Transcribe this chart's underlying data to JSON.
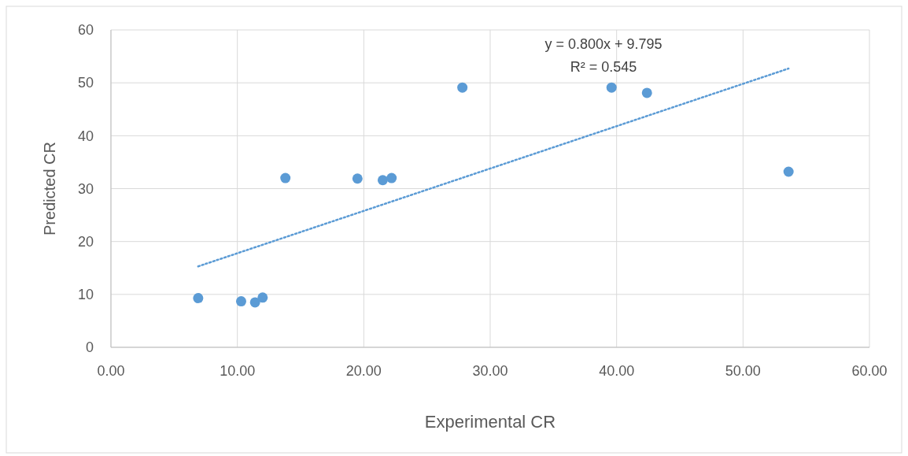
{
  "chart_data": {
    "type": "scatter",
    "xlabel": "Experimental CR",
    "ylabel": "Predicted CR",
    "xlim": [
      0,
      60
    ],
    "ylim": [
      0,
      60
    ],
    "xticks": [
      {
        "value": 0,
        "label": "0.00"
      },
      {
        "value": 10,
        "label": "10.00"
      },
      {
        "value": 20,
        "label": "20.00"
      },
      {
        "value": 30,
        "label": "30.00"
      },
      {
        "value": 40,
        "label": "40.00"
      },
      {
        "value": 50,
        "label": "50.00"
      },
      {
        "value": 60,
        "label": "60.00"
      }
    ],
    "yticks": [
      0,
      10,
      20,
      30,
      40,
      50,
      60
    ],
    "grid": true,
    "marker": "circle",
    "annotations": [
      "y = 0.800x + 9.795",
      "R² = 0.545"
    ],
    "series": [
      {
        "color": "#5b9bd5",
        "x": [
          6.9,
          10.3,
          11.4,
          12.0,
          13.8,
          19.5,
          21.5,
          22.2,
          27.8,
          39.6,
          42.4,
          53.6
        ],
        "values": [
          9.3,
          8.7,
          8.5,
          9.4,
          32.0,
          31.9,
          31.6,
          32.0,
          49.1,
          49.1,
          48.1,
          33.2
        ]
      },
      {
        "type": "line",
        "color": "#5b9bd5",
        "line_style": "dotted",
        "marker": "none",
        "x": [
          6.9,
          53.6
        ],
        "values": [
          15.3,
          52.7
        ]
      }
    ]
  }
}
